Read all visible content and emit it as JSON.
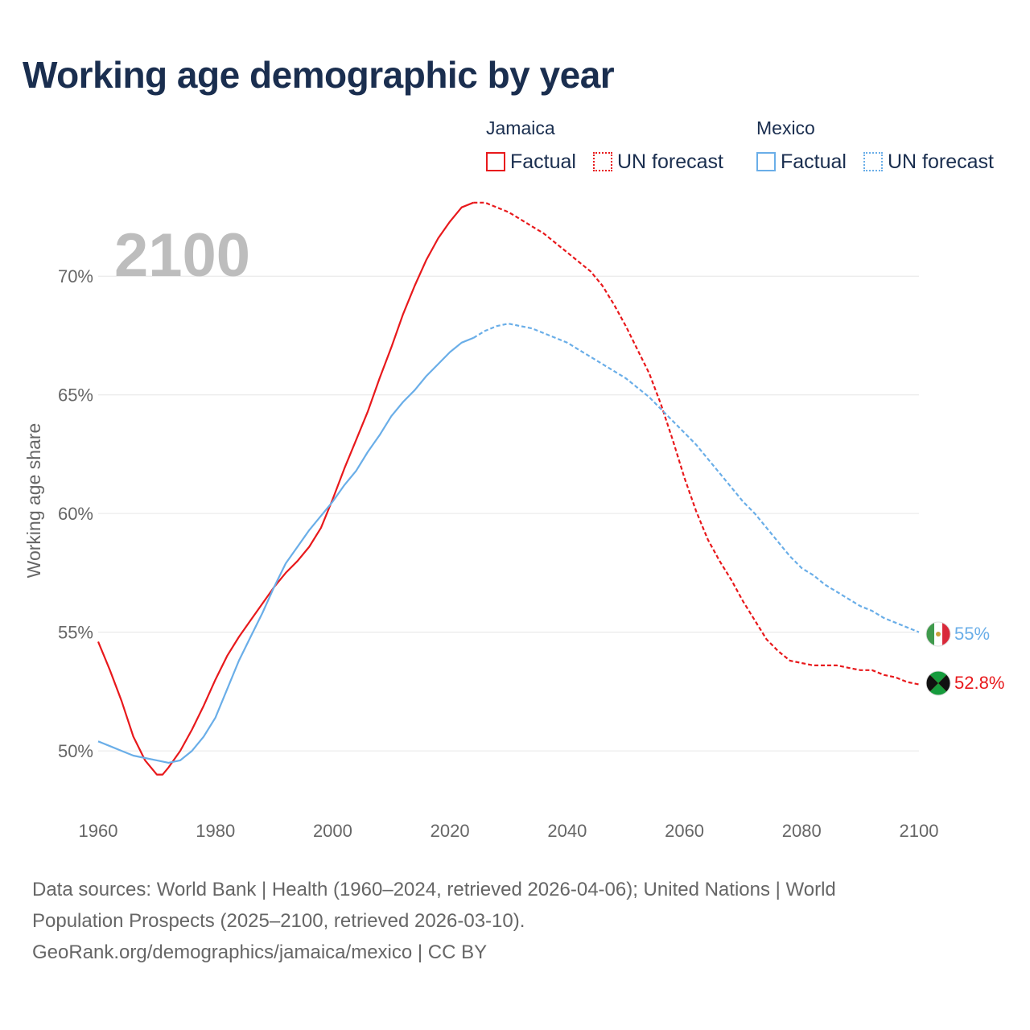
{
  "title": "Working age demographic by year",
  "legend": {
    "groups": [
      {
        "name": "Jamaica",
        "color": "#e8191c",
        "factual_label": "Factual",
        "forecast_label": "UN forecast"
      },
      {
        "name": "Mexico",
        "color": "#6aaee8",
        "factual_label": "Factual",
        "forecast_label": "UN forecast"
      }
    ]
  },
  "source": {
    "line1": "Data sources: World Bank | Health (1960–2024, retrieved 2026-04-06); United Nations | World",
    "line2": "Population Prospects (2025–2100, retrieved 2026-03-10).",
    "line3": "GeoRank.org/demographics/jamaica/mexico | CC BY"
  },
  "chart_data": {
    "type": "line",
    "current_year_label": "2100",
    "ylabel": "Working age share",
    "xlim": [
      1960,
      2100
    ],
    "ylim": [
      47.8,
      73.5
    ],
    "x_ticks": [
      1960,
      1980,
      2000,
      2020,
      2040,
      2060,
      2080,
      2100
    ],
    "x_tick_labels": [
      "1960",
      "1980",
      "2000",
      "2020",
      "2040",
      "2060",
      "2080",
      "2100"
    ],
    "y_ticks": [
      50,
      55,
      60,
      65,
      70
    ],
    "y_tick_labels": [
      "50%",
      "55%",
      "60%",
      "65%",
      "70%"
    ],
    "forecast_start": 2024,
    "series": [
      {
        "name": "Jamaica",
        "color": "#e8191c",
        "end_label": "52.8%",
        "flag": "jamaica-flag",
        "x": [
          1960,
          1962,
          1964,
          1966,
          1968,
          1970,
          1971,
          1972,
          1974,
          1976,
          1978,
          1980,
          1982,
          1984,
          1986,
          1988,
          1990,
          1992,
          1994,
          1996,
          1998,
          2000,
          2002,
          2004,
          2006,
          2008,
          2010,
          2012,
          2014,
          2016,
          2018,
          2020,
          2022,
          2024,
          2026,
          2028,
          2030,
          2032,
          2034,
          2036,
          2038,
          2040,
          2042,
          2044,
          2046,
          2048,
          2050,
          2052,
          2054,
          2056,
          2058,
          2060,
          2062,
          2064,
          2066,
          2068,
          2070,
          2072,
          2074,
          2076,
          2078,
          2080,
          2082,
          2084,
          2086,
          2088,
          2090,
          2092,
          2094,
          2096,
          2098,
          2100
        ],
        "values": [
          54.6,
          53.4,
          52.1,
          50.6,
          49.6,
          49.0,
          49.0,
          49.3,
          50.0,
          50.9,
          51.9,
          53.0,
          54.0,
          54.8,
          55.5,
          56.2,
          56.9,
          57.5,
          58.0,
          58.6,
          59.4,
          60.6,
          61.9,
          63.1,
          64.3,
          65.7,
          67.0,
          68.4,
          69.6,
          70.7,
          71.6,
          72.3,
          72.9,
          73.1,
          73.1,
          72.9,
          72.7,
          72.4,
          72.1,
          71.8,
          71.4,
          71.0,
          70.6,
          70.2,
          69.6,
          68.8,
          67.9,
          66.9,
          65.9,
          64.6,
          63.1,
          61.5,
          60.1,
          58.9,
          58.0,
          57.2,
          56.3,
          55.5,
          54.7,
          54.2,
          53.8,
          53.7,
          53.6,
          53.6,
          53.6,
          53.5,
          53.4,
          53.4,
          53.2,
          53.1,
          52.9,
          52.8
        ]
      },
      {
        "name": "Mexico",
        "color": "#6aaee8",
        "end_label": "55%",
        "flag": "mexico-flag",
        "x": [
          1960,
          1962,
          1964,
          1966,
          1968,
          1970,
          1972,
          1974,
          1976,
          1978,
          1980,
          1982,
          1984,
          1986,
          1988,
          1990,
          1992,
          1994,
          1996,
          1998,
          2000,
          2002,
          2004,
          2006,
          2008,
          2010,
          2012,
          2014,
          2016,
          2018,
          2020,
          2022,
          2024,
          2026,
          2028,
          2030,
          2032,
          2034,
          2036,
          2038,
          2040,
          2042,
          2044,
          2046,
          2048,
          2050,
          2052,
          2054,
          2056,
          2058,
          2060,
          2062,
          2064,
          2066,
          2068,
          2070,
          2072,
          2074,
          2076,
          2078,
          2080,
          2082,
          2084,
          2086,
          2088,
          2090,
          2092,
          2094,
          2096,
          2098,
          2100
        ],
        "values": [
          50.4,
          50.2,
          50.0,
          49.8,
          49.7,
          49.6,
          49.5,
          49.6,
          50.0,
          50.6,
          51.4,
          52.6,
          53.8,
          54.8,
          55.8,
          56.9,
          57.9,
          58.6,
          59.3,
          59.9,
          60.5,
          61.2,
          61.8,
          62.6,
          63.3,
          64.1,
          64.7,
          65.2,
          65.8,
          66.3,
          66.8,
          67.2,
          67.4,
          67.7,
          67.9,
          68.0,
          67.9,
          67.8,
          67.6,
          67.4,
          67.2,
          66.9,
          66.6,
          66.3,
          66.0,
          65.7,
          65.3,
          64.9,
          64.4,
          63.9,
          63.4,
          62.9,
          62.3,
          61.7,
          61.1,
          60.5,
          60.0,
          59.4,
          58.8,
          58.2,
          57.7,
          57.4,
          57.0,
          56.7,
          56.4,
          56.1,
          55.9,
          55.6,
          55.4,
          55.2,
          55.0
        ]
      }
    ]
  }
}
